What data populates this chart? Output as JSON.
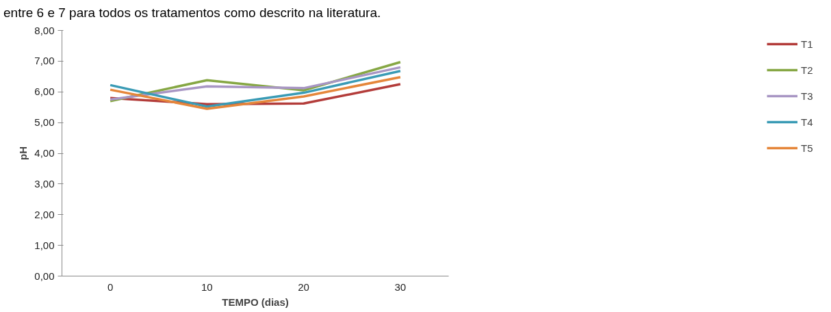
{
  "chart_data": {
    "type": "line",
    "xlabel": "TEMPO (dias)",
    "ylabel": "pH",
    "annotations": [
      "entre 6 e 7 para todos os tratamentos como descrito na literatura."
    ],
    "categories": [
      "0",
      "10",
      "20",
      "30"
    ],
    "series": [
      {
        "name": "T1",
        "color": "#b33c3a",
        "values": [
          5.8,
          5.6,
          5.62,
          6.25
        ]
      },
      {
        "name": "T2",
        "color": "#86a744",
        "values": [
          5.7,
          6.38,
          6.05,
          6.97
        ]
      },
      {
        "name": "T3",
        "color": "#a896c4",
        "values": [
          5.75,
          6.18,
          6.12,
          6.8
        ]
      },
      {
        "name": "T4",
        "color": "#3a9bb5",
        "values": [
          6.22,
          5.52,
          5.97,
          6.68
        ]
      },
      {
        "name": "T5",
        "color": "#e5863a",
        "values": [
          6.07,
          5.45,
          5.85,
          6.48
        ]
      }
    ],
    "ylim": [
      0,
      8
    ],
    "yticks": [
      {
        "value": 0,
        "label": "0,00"
      },
      {
        "value": 1,
        "label": "1,00"
      },
      {
        "value": 2,
        "label": "2,00"
      },
      {
        "value": 3,
        "label": "3,00"
      },
      {
        "value": 4,
        "label": "4,00"
      },
      {
        "value": 5,
        "label": "5,00"
      },
      {
        "value": 6,
        "label": "6,00"
      },
      {
        "value": 7,
        "label": "7,00"
      },
      {
        "value": 8,
        "label": "8,00"
      }
    ],
    "grid": false,
    "legend": "right",
    "marker": "none",
    "line_style": "solid"
  }
}
